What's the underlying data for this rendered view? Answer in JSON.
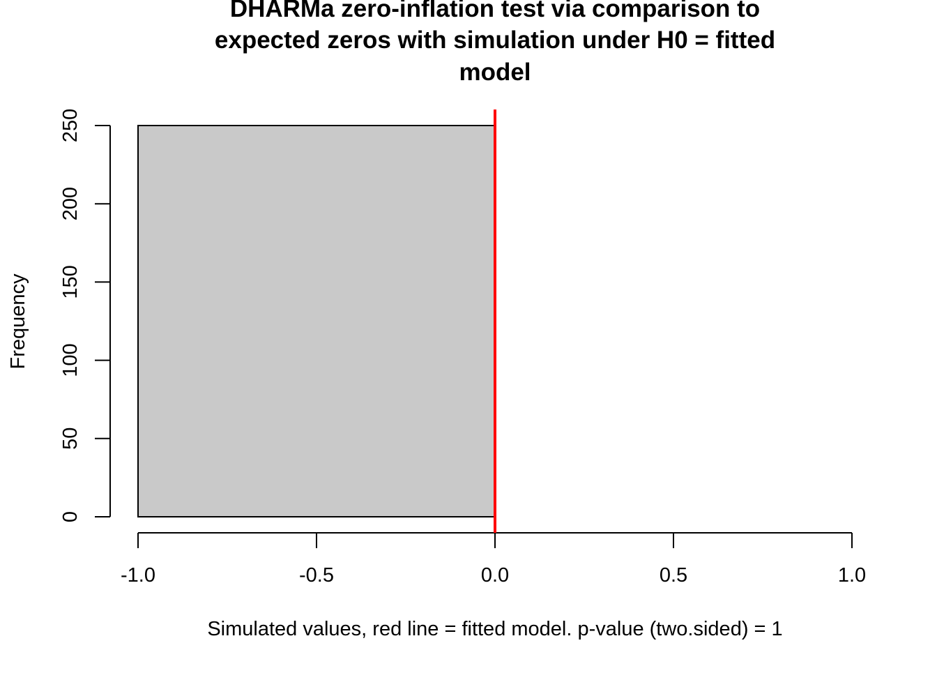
{
  "chart_data": {
    "type": "bar",
    "title_lines": [
      "DHARMa zero-inflation test via comparison to",
      "expected zeros with simulation under H0 = fitted",
      "model"
    ],
    "xlabel": "Simulated values, red line = fitted model. p-value (two.sided) = 1",
    "ylabel": "Frequency",
    "xlim": [
      -1.0,
      1.0
    ],
    "ylim": [
      0,
      250
    ],
    "x_ticks": [
      "-1.0",
      "-0.5",
      "0.0",
      "0.5",
      "1.0"
    ],
    "y_ticks": [
      "0",
      "50",
      "100",
      "150",
      "200",
      "250"
    ],
    "bins": [
      {
        "x0": -1.0,
        "x1": 0.0,
        "count": 250
      }
    ],
    "bar_color": "#c9c9c9",
    "reference_line": {
      "x": 0.0,
      "color": "#ff0000"
    },
    "grid": false,
    "legend": "none"
  }
}
